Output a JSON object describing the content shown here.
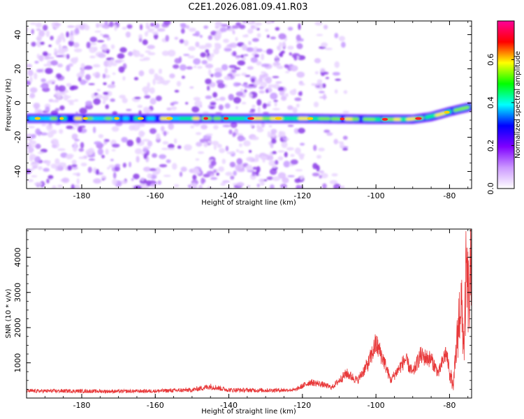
{
  "title": "C2E1.2026.081.09.41.R03",
  "chart_data": [
    {
      "type": "heatmap",
      "xlabel": "Height of straight line (km)",
      "ylabel": "Frequency (Hz)",
      "xlim": [
        -195,
        -74
      ],
      "ylim": [
        -50,
        48
      ],
      "xticks": [
        -180,
        -160,
        -140,
        -120,
        -100,
        -80
      ],
      "yticks": [
        -40,
        -20,
        0,
        20,
        40
      ],
      "colorbar": {
        "label": "Normalized spectral amplitude",
        "range": [
          0,
          0.78
        ],
        "ticks": [
          "0.0",
          "0.2",
          "0.4",
          "0.6"
        ],
        "tick_values": [
          0.0,
          0.2,
          0.4,
          0.6
        ],
        "colors": [
          "#ffffff",
          "#cc99ff",
          "#7f00ff",
          "#0000ff",
          "#00ffff",
          "#00ff00",
          "#ffff00",
          "#ff0000",
          "#ff0099"
        ]
      },
      "signal_band": {
        "description": "main echo near -9 Hz, rising toward 0 Hz at low heights",
        "frequency_hz": [
          [
            -195,
            -9
          ],
          [
            -160,
            -9
          ],
          [
            -120,
            -9
          ],
          [
            -100,
            -9.5
          ],
          [
            -90,
            -9.5
          ],
          [
            -85,
            -8
          ],
          [
            -80,
            -5
          ],
          [
            -76,
            -3
          ],
          [
            -74,
            -2
          ]
        ],
        "peak_amplitude": 0.78
      },
      "noise_regions_km": [
        [
          -195,
          -120
        ],
        [
          -117,
          -108
        ]
      ]
    },
    {
      "type": "line",
      "xlabel": "Height of straight line (km)",
      "ylabel": "SNR (10 * v/v)",
      "xlim": [
        -195,
        -74
      ],
      "ylim": [
        0,
        4800
      ],
      "xticks": [
        -180,
        -160,
        -140,
        -120,
        -100,
        -80
      ],
      "yticks": [
        1000,
        2000,
        3000,
        4000
      ],
      "series": [
        {
          "name": "SNR",
          "color": "#e8393a",
          "envelope_km_snr": [
            [
              -195,
              200
            ],
            [
              -185,
              200
            ],
            [
              -170,
              190
            ],
            [
              -160,
              200
            ],
            [
              -150,
              230
            ],
            [
              -145,
              330
            ],
            [
              -140,
              230
            ],
            [
              -130,
              220
            ],
            [
              -122,
              230
            ],
            [
              -118,
              450
            ],
            [
              -115,
              400
            ],
            [
              -112,
              300
            ],
            [
              -108,
              700
            ],
            [
              -105,
              500
            ],
            [
              -102,
              1000
            ],
            [
              -100,
              1550
            ],
            [
              -98,
              1100
            ],
            [
              -96,
              500
            ],
            [
              -94,
              800
            ],
            [
              -92,
              1100
            ],
            [
              -90,
              700
            ],
            [
              -88,
              1200
            ],
            [
              -85,
              1100
            ],
            [
              -83,
              700
            ],
            [
              -81,
              1300
            ],
            [
              -79,
              300
            ],
            [
              -77,
              2800
            ],
            [
              -76,
              1500
            ],
            [
              -75.5,
              3500
            ],
            [
              -74.5,
              2600
            ],
            [
              -74,
              4700
            ]
          ]
        }
      ]
    }
  ]
}
